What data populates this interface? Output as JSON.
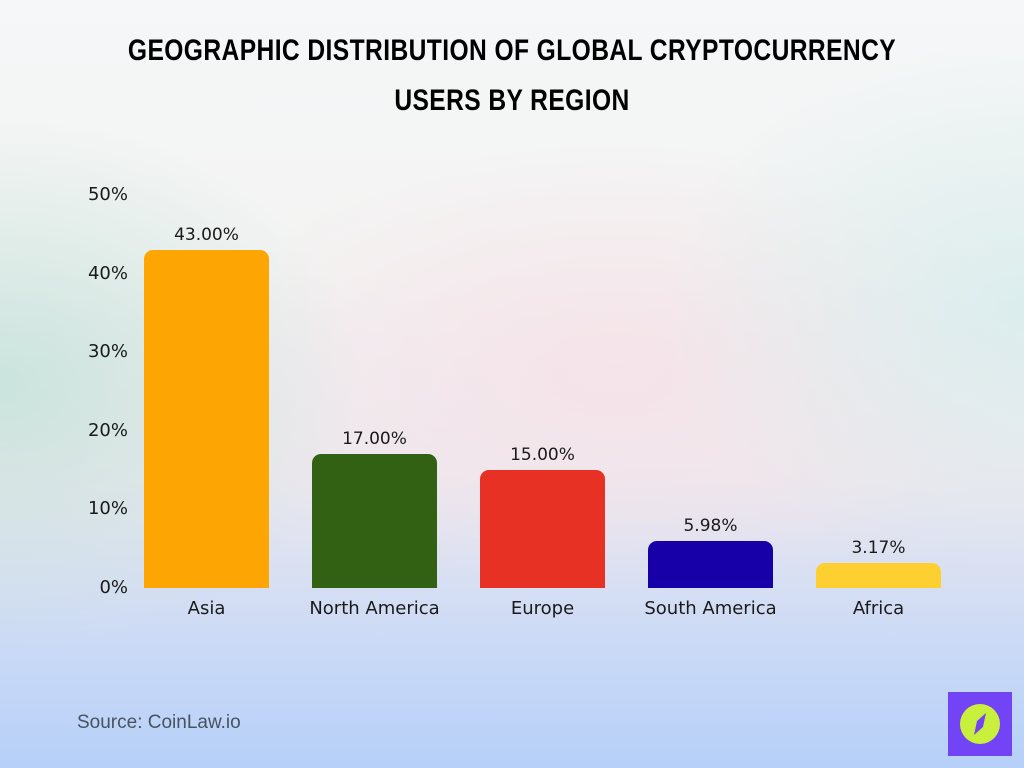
{
  "header": {
    "title": "Geographic Distribution of Global Cryptocurrency Users by Region"
  },
  "footer": {
    "source": "Source: CoinLaw.io",
    "logo_icon": "compass-icon"
  },
  "chart_data": {
    "type": "bar",
    "title": "Geographic Distribution of Global Cryptocurrency Users by Region",
    "xlabel": "",
    "ylabel": "",
    "categories": [
      "Asia",
      "North America",
      "Europe",
      "South America",
      "Africa"
    ],
    "values": [
      43.0,
      17.0,
      15.0,
      5.98,
      3.17
    ],
    "value_labels": [
      "43.00%",
      "17.00%",
      "15.00%",
      "5.98%",
      "3.17%"
    ],
    "colors": [
      "#fca503",
      "#336114",
      "#e83125",
      "#1800a8",
      "#fdcf30"
    ],
    "ylim": [
      0,
      50
    ],
    "yticks": [
      "0%",
      "10%",
      "20%",
      "30%",
      "40%",
      "50%"
    ],
    "grid": false,
    "legend": null,
    "unit": "%"
  }
}
